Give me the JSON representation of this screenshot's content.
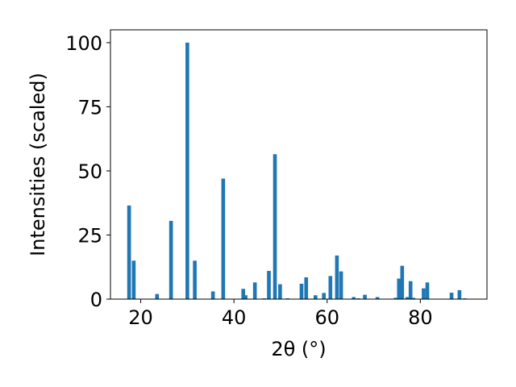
{
  "chart_data": {
    "type": "bar",
    "title": "",
    "xlabel": "2θ (°)",
    "ylabel": "Intensities (scaled)",
    "xlim": [
      13.5,
      94.3
    ],
    "ylim": [
      0,
      105
    ],
    "xticks": [
      20,
      40,
      60,
      80
    ],
    "yticks": [
      0,
      25,
      50,
      75,
      100
    ],
    "grid": false,
    "bar_color": "#1f77b4",
    "bar_width": 0.8,
    "x": [
      17.5,
      18.5,
      23.5,
      26.5,
      30.0,
      31.6,
      35.5,
      37.7,
      42.0,
      42.5,
      44.5,
      46.5,
      47.5,
      48.8,
      49.9,
      51.5,
      54.5,
      55.5,
      57.5,
      59.3,
      60.7,
      62.1,
      63.0,
      65.7,
      66.7,
      68.1,
      70.8,
      74.7,
      75.4,
      76.1,
      77.2,
      77.9,
      78.5,
      80.7,
      81.5,
      86.7,
      88.4,
      89.5
    ],
    "values": [
      36.5,
      15.0,
      2.0,
      30.5,
      100,
      15.0,
      3.0,
      47.0,
      4.0,
      1.5,
      6.5,
      0.3,
      11.0,
      56.5,
      5.8,
      0.3,
      6.0,
      8.5,
      1.5,
      2.4,
      9.0,
      17.0,
      10.8,
      0.8,
      0.3,
      1.7,
      0.8,
      0.5,
      8.0,
      13.0,
      0.8,
      7.0,
      0.5,
      4.2,
      6.5,
      2.5,
      3.5,
      0.3
    ]
  }
}
